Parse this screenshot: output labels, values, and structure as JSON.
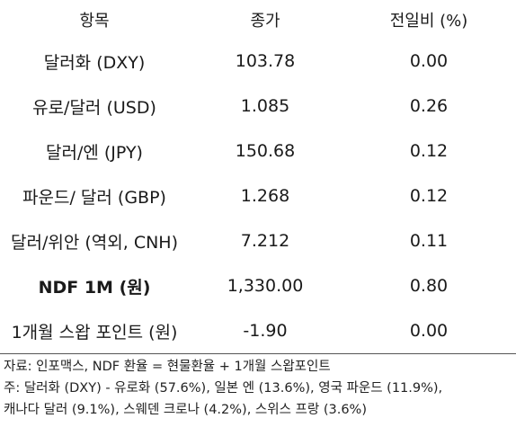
{
  "table": {
    "headers": [
      "항목",
      "종가",
      "전일비 (%)"
    ],
    "rows": [
      {
        "item": "달러화 (DXY)",
        "close": "103.78",
        "change": "0.00",
        "bold": false
      },
      {
        "item": "유로/달러 (USD)",
        "close": "1.085",
        "change": "0.26",
        "bold": false
      },
      {
        "item": "달러/엔 (JPY)",
        "close": "150.68",
        "change": "0.12",
        "bold": false
      },
      {
        "item": "파운드/ 달러 (GBP)",
        "close": "1.268",
        "change": "0.12",
        "bold": false
      },
      {
        "item": "달러/위안 (역외, CNH)",
        "close": "7.212",
        "change": "0.11",
        "bold": false
      },
      {
        "item": "NDF 1M (원)",
        "close": "1,330.00",
        "change": "0.80",
        "bold": true
      },
      {
        "item": "1개월 스왑 포인트 (원)",
        "close": "-1.90",
        "change": "0.00",
        "bold": false
      }
    ]
  },
  "notes": {
    "source": "자료: 인포맥스, NDF 환율 = 현물환율 + 1개월 스왑포인트",
    "note_line1": "주: 달러화 (DXY) - 유로화 (57.6%), 일본 엔 (13.6%), 영국 파운드 (11.9%),",
    "note_line2": "캐나다 달러 (9.1%), 스웨덴 크로나 (4.2%), 스위스 프랑 (3.6%)"
  }
}
